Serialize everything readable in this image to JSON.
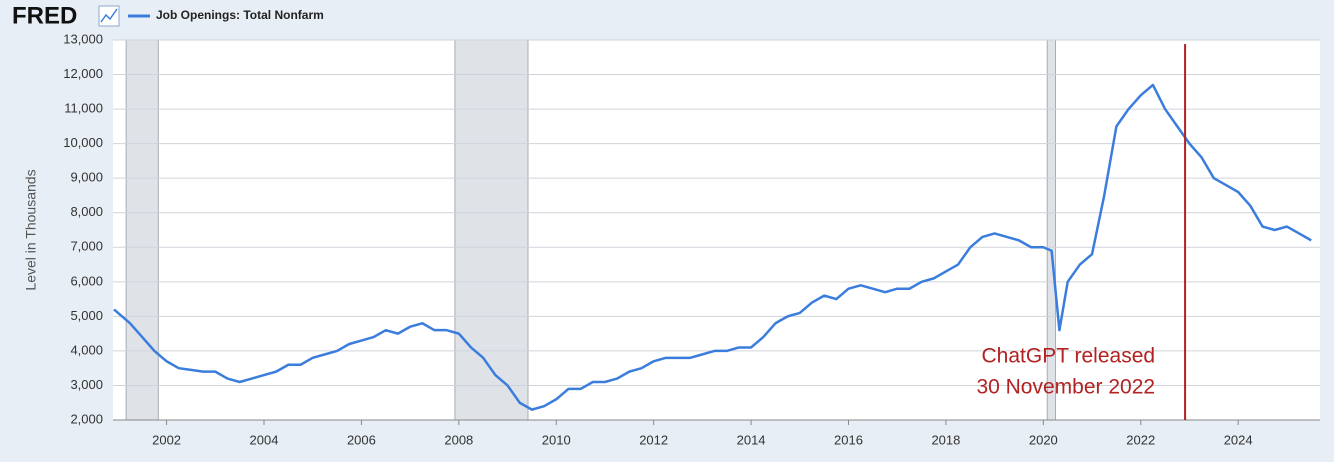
{
  "chart_data": {
    "type": "line",
    "source": "FRED",
    "ylabel": "Level in Thousands",
    "xlim": [
      2000.9,
      2025.68
    ],
    "ylim": [
      2000,
      13000
    ],
    "xticks": [
      2002,
      2004,
      2006,
      2008,
      2010,
      2012,
      2014,
      2016,
      2018,
      2020,
      2022,
      2024
    ],
    "yticks": [
      {
        "value": 2000,
        "label": "2,000"
      },
      {
        "value": 3000,
        "label": "3,000"
      },
      {
        "value": 4000,
        "label": "4,000"
      },
      {
        "value": 5000,
        "label": "5,000"
      },
      {
        "value": 6000,
        "label": "6,000"
      },
      {
        "value": 7000,
        "label": "7,000"
      },
      {
        "value": 8000,
        "label": "8,000"
      },
      {
        "value": 9000,
        "label": "9,000"
      },
      {
        "value": 10000,
        "label": "10,000"
      },
      {
        "value": 11000,
        "label": "11,000"
      },
      {
        "value": 12000,
        "label": "12,000"
      },
      {
        "value": 13000,
        "label": "13,000"
      }
    ],
    "grid": true,
    "recessions": [
      [
        2001.17,
        2001.83
      ],
      [
        2007.92,
        2009.42
      ],
      [
        2020.08,
        2020.25
      ]
    ],
    "annotation": {
      "lines": [
        "ChatGPT released",
        "30 November 2022"
      ],
      "x": 2022.91,
      "color": "#b22222"
    },
    "x": [
      2000.92,
      2001.25,
      2001.5,
      2001.75,
      2002.0,
      2002.25,
      2002.5,
      2002.75,
      2003.0,
      2003.25,
      2003.5,
      2003.75,
      2004.0,
      2004.25,
      2004.5,
      2004.75,
      2005.0,
      2005.25,
      2005.5,
      2005.75,
      2006.0,
      2006.25,
      2006.5,
      2006.75,
      2007.0,
      2007.25,
      2007.5,
      2007.75,
      2008.0,
      2008.25,
      2008.5,
      2008.75,
      2009.0,
      2009.25,
      2009.5,
      2009.75,
      2010.0,
      2010.25,
      2010.5,
      2010.75,
      2011.0,
      2011.25,
      2011.5,
      2011.75,
      2012.0,
      2012.25,
      2012.5,
      2012.75,
      2013.0,
      2013.25,
      2013.5,
      2013.75,
      2014.0,
      2014.25,
      2014.5,
      2014.75,
      2015.0,
      2015.25,
      2015.5,
      2015.75,
      2016.0,
      2016.25,
      2016.5,
      2016.75,
      2017.0,
      2017.25,
      2017.5,
      2017.75,
      2018.0,
      2018.25,
      2018.5,
      2018.75,
      2019.0,
      2019.25,
      2019.5,
      2019.75,
      2020.0,
      2020.17,
      2020.33,
      2020.5,
      2020.75,
      2021.0,
      2021.25,
      2021.5,
      2021.75,
      2022.0,
      2022.25,
      2022.5,
      2022.75,
      2023.0,
      2023.25,
      2023.5,
      2023.75,
      2024.0,
      2024.25,
      2024.5,
      2024.75,
      2025.0,
      2025.25,
      2025.5
    ],
    "series": [
      {
        "name": "Job Openings: Total Nonfarm",
        "color": "#3b7ddd",
        "values": [
          5200,
          4800,
          4400,
          4000,
          3700,
          3500,
          3450,
          3400,
          3400,
          3200,
          3100,
          3200,
          3300,
          3400,
          3600,
          3600,
          3800,
          3900,
          4000,
          4200,
          4300,
          4400,
          4600,
          4500,
          4700,
          4800,
          4600,
          4600,
          4500,
          4100,
          3800,
          3300,
          3000,
          2500,
          2300,
          2400,
          2600,
          2900,
          2900,
          3100,
          3100,
          3200,
          3400,
          3500,
          3700,
          3800,
          3800,
          3800,
          3900,
          4000,
          4000,
          4100,
          4100,
          4400,
          4800,
          5000,
          5100,
          5400,
          5600,
          5500,
          5800,
          5900,
          5800,
          5700,
          5800,
          5800,
          6000,
          6100,
          6300,
          6500,
          7000,
          7300,
          7400,
          7300,
          7200,
          7000,
          7000,
          6900,
          4600,
          6000,
          6500,
          6800,
          8500,
          10500,
          11000,
          11400,
          11700,
          11000,
          10500,
          10000,
          9600,
          9000,
          8800,
          8600,
          8200,
          7600,
          7500,
          7600,
          7400,
          7200
        ]
      }
    ]
  }
}
